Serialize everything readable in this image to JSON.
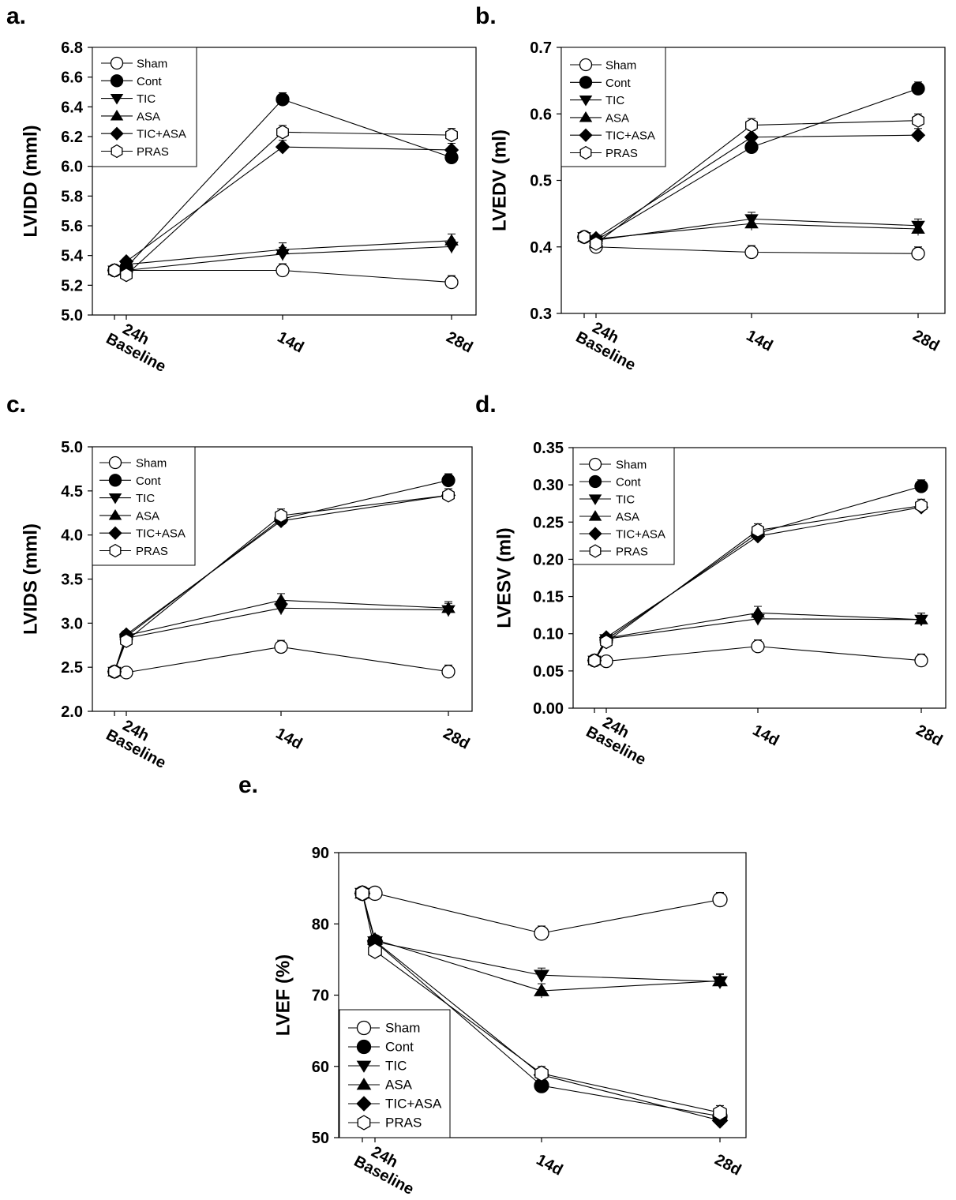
{
  "chart_data": [
    {
      "panel": "a.",
      "type": "line",
      "ylabel": "LVIDD (mml)",
      "ylim": [
        5.0,
        6.8
      ],
      "yticks": [
        "5.0",
        "5.2",
        "5.4",
        "5.6",
        "5.8",
        "6.0",
        "6.2",
        "6.4",
        "6.6",
        "6.8"
      ],
      "x_tick_labels": [
        "Baseline",
        "24h",
        "14d",
        "28d"
      ],
      "legend": [
        "Sham",
        "Cont",
        "TIC",
        "ASA",
        "TIC+ASA",
        "PRAS"
      ],
      "legend_position": "top-left",
      "series": [
        {
          "name": "Sham",
          "marker": "circle-open",
          "x": [
            "Baseline",
            "24h",
            "14d",
            "28d"
          ],
          "values": [
            5.3,
            5.3,
            5.3,
            5.22
          ]
        },
        {
          "name": "Cont",
          "marker": "circle-filled",
          "x": [
            "Baseline",
            "24h",
            "14d",
            "28d"
          ],
          "values": [
            5.3,
            5.32,
            6.45,
            6.06
          ]
        },
        {
          "name": "TIC",
          "marker": "triangle-down",
          "x": [
            "Baseline",
            "24h",
            "14d",
            "28d"
          ],
          "values": [
            5.3,
            5.3,
            5.41,
            5.46
          ]
        },
        {
          "name": "ASA",
          "marker": "triangle-up",
          "x": [
            "Baseline",
            "24h",
            "14d",
            "28d"
          ],
          "values": [
            5.3,
            5.34,
            5.44,
            5.5
          ]
        },
        {
          "name": "TIC+ASA",
          "marker": "diamond",
          "x": [
            "Baseline",
            "24h",
            "14d",
            "28d"
          ],
          "values": [
            5.3,
            5.36,
            6.13,
            6.11
          ]
        },
        {
          "name": "PRAS",
          "marker": "hexagon-open",
          "x": [
            "Baseline",
            "24h",
            "14d",
            "28d"
          ],
          "values": [
            5.3,
            5.27,
            6.23,
            6.21
          ]
        }
      ]
    },
    {
      "panel": "b.",
      "type": "line",
      "ylabel": "LVEDV (ml)",
      "ylim": [
        0.3,
        0.7
      ],
      "yticks": [
        "0.3",
        "0.4",
        "0.5",
        "0.6",
        "0.7"
      ],
      "x_tick_labels": [
        "Baseline",
        "24h",
        "14d",
        "28d"
      ],
      "legend": [
        "Sham",
        "Cont",
        "TIC",
        "ASA",
        "TIC+ASA",
        "PRAS"
      ],
      "legend_position": "top-left",
      "series": [
        {
          "name": "Sham",
          "marker": "circle-open",
          "x": [
            "Baseline",
            "24h",
            "14d",
            "28d"
          ],
          "values": [
            0.415,
            0.4,
            0.392,
            0.39
          ]
        },
        {
          "name": "Cont",
          "marker": "circle-filled",
          "x": [
            "Baseline",
            "24h",
            "14d",
            "28d"
          ],
          "values": [
            0.415,
            0.41,
            0.55,
            0.638
          ]
        },
        {
          "name": "TIC",
          "marker": "triangle-down",
          "x": [
            "Baseline",
            "24h",
            "14d",
            "28d"
          ],
          "values": [
            0.415,
            0.41,
            0.442,
            0.432
          ]
        },
        {
          "name": "ASA",
          "marker": "triangle-up",
          "x": [
            "Baseline",
            "24h",
            "14d",
            "28d"
          ],
          "values": [
            0.415,
            0.412,
            0.435,
            0.427
          ]
        },
        {
          "name": "TIC+ASA",
          "marker": "diamond",
          "x": [
            "Baseline",
            "24h",
            "14d",
            "28d"
          ],
          "values": [
            0.415,
            0.413,
            0.565,
            0.568
          ]
        },
        {
          "name": "PRAS",
          "marker": "hexagon-open",
          "x": [
            "Baseline",
            "24h",
            "14d",
            "28d"
          ],
          "values": [
            0.415,
            0.405,
            0.583,
            0.59
          ]
        }
      ]
    },
    {
      "panel": "c.",
      "type": "line",
      "ylabel": "LVIDS (mml)",
      "ylim": [
        2.0,
        5.0
      ],
      "yticks": [
        "2.0",
        "2.5",
        "3.0",
        "3.5",
        "4.0",
        "4.5",
        "5.0"
      ],
      "x_tick_labels": [
        "Baseline",
        "24h",
        "14d",
        "28d"
      ],
      "legend": [
        "Sham",
        "Cont",
        "TIC",
        "ASA",
        "TIC+ASA",
        "PRAS"
      ],
      "legend_position": "top-left",
      "series": [
        {
          "name": "Sham",
          "marker": "circle-open",
          "x": [
            "Baseline",
            "24h",
            "14d",
            "28d"
          ],
          "values": [
            2.45,
            2.44,
            2.73,
            2.45
          ]
        },
        {
          "name": "Cont",
          "marker": "circle-filled",
          "x": [
            "Baseline",
            "24h",
            "14d",
            "28d"
          ],
          "values": [
            2.45,
            2.85,
            4.18,
            4.62
          ]
        },
        {
          "name": "TIC",
          "marker": "triangle-down",
          "x": [
            "Baseline",
            "24h",
            "14d",
            "28d"
          ],
          "values": [
            2.45,
            2.83,
            3.17,
            3.15
          ]
        },
        {
          "name": "ASA",
          "marker": "triangle-up",
          "x": [
            "Baseline",
            "24h",
            "14d",
            "28d"
          ],
          "values": [
            2.45,
            2.86,
            3.26,
            3.17
          ]
        },
        {
          "name": "TIC+ASA",
          "marker": "diamond",
          "x": [
            "Baseline",
            "24h",
            "14d",
            "28d"
          ],
          "values": [
            2.45,
            2.87,
            4.16,
            4.45
          ]
        },
        {
          "name": "PRAS",
          "marker": "hexagon-open",
          "x": [
            "Baseline",
            "24h",
            "14d",
            "28d"
          ],
          "values": [
            2.45,
            2.8,
            4.22,
            4.45
          ]
        }
      ]
    },
    {
      "panel": "d.",
      "type": "line",
      "ylabel": "LVESV (ml)",
      "ylim": [
        0.0,
        0.35
      ],
      "yticks": [
        "0.00",
        "0.05",
        "0.10",
        "0.15",
        "0.20",
        "0.25",
        "0.30",
        "0.35"
      ],
      "x_tick_labels": [
        "Baseline",
        "24h",
        "14d",
        "28d"
      ],
      "legend": [
        "Sham",
        "Cont",
        "TIC",
        "ASA",
        "TIC+ASA",
        "PRAS"
      ],
      "legend_position": "top-left",
      "series": [
        {
          "name": "Sham",
          "marker": "circle-open",
          "x": [
            "Baseline",
            "24h",
            "14d",
            "28d"
          ],
          "values": [
            0.064,
            0.063,
            0.083,
            0.064
          ]
        },
        {
          "name": "Cont",
          "marker": "circle-filled",
          "x": [
            "Baseline",
            "24h",
            "14d",
            "28d"
          ],
          "values": [
            0.064,
            0.092,
            0.235,
            0.298
          ]
        },
        {
          "name": "TIC",
          "marker": "triangle-down",
          "x": [
            "Baseline",
            "24h",
            "14d",
            "28d"
          ],
          "values": [
            0.064,
            0.093,
            0.12,
            0.119
          ]
        },
        {
          "name": "ASA",
          "marker": "triangle-up",
          "x": [
            "Baseline",
            "24h",
            "14d",
            "28d"
          ],
          "values": [
            0.064,
            0.094,
            0.128,
            0.119
          ]
        },
        {
          "name": "TIC+ASA",
          "marker": "diamond",
          "x": [
            "Baseline",
            "24h",
            "14d",
            "28d"
          ],
          "values": [
            0.064,
            0.095,
            0.231,
            0.27
          ]
        },
        {
          "name": "PRAS",
          "marker": "hexagon-open",
          "x": [
            "Baseline",
            "24h",
            "14d",
            "28d"
          ],
          "values": [
            0.064,
            0.089,
            0.239,
            0.272
          ]
        }
      ]
    },
    {
      "panel": "e.",
      "type": "line",
      "ylabel": "LVEF (%)",
      "ylim": [
        50,
        90
      ],
      "yticks": [
        "50",
        "60",
        "70",
        "80",
        "90"
      ],
      "x_tick_labels": [
        "Baseline",
        "24h",
        "14d",
        "28d"
      ],
      "legend": [
        "Sham",
        "Cont",
        "TIC",
        "ASA",
        "TIC+ASA",
        "PRAS"
      ],
      "legend_position": "bottom-left",
      "series": [
        {
          "name": "Sham",
          "marker": "circle-open",
          "x": [
            "Baseline",
            "24h",
            "14d",
            "28d"
          ],
          "values": [
            84.3,
            84.3,
            78.7,
            83.4
          ]
        },
        {
          "name": "Cont",
          "marker": "circle-filled",
          "x": [
            "Baseline",
            "24h",
            "14d",
            "28d"
          ],
          "values": [
            84.3,
            77.5,
            57.3,
            53.0
          ]
        },
        {
          "name": "TIC",
          "marker": "triangle-down",
          "x": [
            "Baseline",
            "24h",
            "14d",
            "28d"
          ],
          "values": [
            84.3,
            77.5,
            72.8,
            71.9
          ]
        },
        {
          "name": "ASA",
          "marker": "triangle-up",
          "x": [
            "Baseline",
            "24h",
            "14d",
            "28d"
          ],
          "values": [
            84.3,
            77.8,
            70.6,
            72.0
          ]
        },
        {
          "name": "TIC+ASA",
          "marker": "diamond",
          "x": [
            "Baseline",
            "24h",
            "14d",
            "28d"
          ],
          "values": [
            84.3,
            77.6,
            58.8,
            52.4
          ]
        },
        {
          "name": "PRAS",
          "marker": "hexagon-open",
          "x": [
            "Baseline",
            "24h",
            "14d",
            "28d"
          ],
          "values": [
            84.3,
            76.2,
            59.0,
            53.5
          ]
        }
      ]
    }
  ]
}
